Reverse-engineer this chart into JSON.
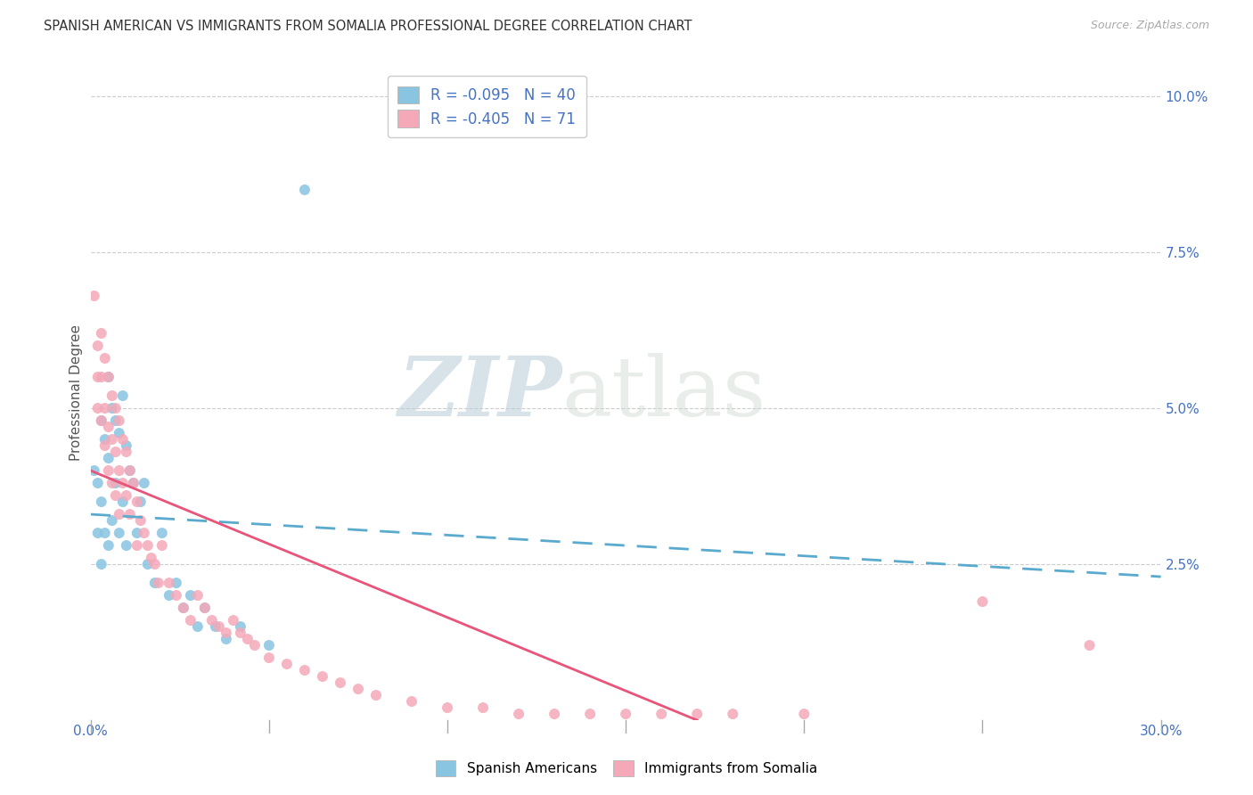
{
  "title": "SPANISH AMERICAN VS IMMIGRANTS FROM SOMALIA PROFESSIONAL DEGREE CORRELATION CHART",
  "source": "Source: ZipAtlas.com",
  "ylabel": "Professional Degree",
  "ytick_vals": [
    0.0,
    0.025,
    0.05,
    0.075,
    0.1
  ],
  "ytick_labs": [
    "",
    "2.5%",
    "5.0%",
    "7.5%",
    "10.0%"
  ],
  "xtick_positions": [
    0.0,
    0.05,
    0.1,
    0.15,
    0.2,
    0.25,
    0.3
  ],
  "xtick_labels": [
    "0.0%",
    "",
    "",
    "",
    "",
    "",
    "30.0%"
  ],
  "xlim": [
    0.0,
    0.3
  ],
  "ylim": [
    0.0,
    0.105
  ],
  "legend_r1": "-0.095",
  "legend_n1": "40",
  "legend_r2": "-0.405",
  "legend_n2": "71",
  "color_blue": "#89c4e1",
  "color_pink": "#f4a8b8",
  "color_blue_line": "#5aaace",
  "color_pink_line": "#e8547a",
  "watermark_zip": "ZIP",
  "watermark_atlas": "atlas",
  "legend_bottom_labels": [
    "Spanish Americans",
    "Immigrants from Somalia"
  ],
  "spanish_x": [
    0.001,
    0.002,
    0.002,
    0.003,
    0.003,
    0.003,
    0.004,
    0.004,
    0.005,
    0.005,
    0.005,
    0.006,
    0.006,
    0.007,
    0.007,
    0.008,
    0.008,
    0.009,
    0.009,
    0.01,
    0.01,
    0.011,
    0.012,
    0.013,
    0.014,
    0.015,
    0.016,
    0.018,
    0.02,
    0.022,
    0.024,
    0.026,
    0.028,
    0.03,
    0.032,
    0.035,
    0.038,
    0.042,
    0.05,
    0.06
  ],
  "spanish_y": [
    0.04,
    0.038,
    0.03,
    0.048,
    0.035,
    0.025,
    0.045,
    0.03,
    0.055,
    0.042,
    0.028,
    0.05,
    0.032,
    0.048,
    0.038,
    0.046,
    0.03,
    0.052,
    0.035,
    0.044,
    0.028,
    0.04,
    0.038,
    0.03,
    0.035,
    0.038,
    0.025,
    0.022,
    0.03,
    0.02,
    0.022,
    0.018,
    0.02,
    0.015,
    0.018,
    0.015,
    0.013,
    0.015,
    0.012,
    0.085
  ],
  "somalia_x": [
    0.001,
    0.002,
    0.002,
    0.002,
    0.003,
    0.003,
    0.003,
    0.004,
    0.004,
    0.004,
    0.005,
    0.005,
    0.005,
    0.006,
    0.006,
    0.006,
    0.007,
    0.007,
    0.007,
    0.008,
    0.008,
    0.008,
    0.009,
    0.009,
    0.01,
    0.01,
    0.011,
    0.011,
    0.012,
    0.013,
    0.013,
    0.014,
    0.015,
    0.016,
    0.017,
    0.018,
    0.019,
    0.02,
    0.022,
    0.024,
    0.026,
    0.028,
    0.03,
    0.032,
    0.034,
    0.036,
    0.038,
    0.04,
    0.042,
    0.044,
    0.046,
    0.05,
    0.055,
    0.06,
    0.065,
    0.07,
    0.075,
    0.08,
    0.09,
    0.1,
    0.11,
    0.12,
    0.13,
    0.14,
    0.15,
    0.16,
    0.17,
    0.18,
    0.2,
    0.25,
    0.28
  ],
  "somalia_y": [
    0.068,
    0.06,
    0.055,
    0.05,
    0.062,
    0.055,
    0.048,
    0.058,
    0.05,
    0.044,
    0.055,
    0.047,
    0.04,
    0.052,
    0.045,
    0.038,
    0.05,
    0.043,
    0.036,
    0.048,
    0.04,
    0.033,
    0.045,
    0.038,
    0.043,
    0.036,
    0.04,
    0.033,
    0.038,
    0.035,
    0.028,
    0.032,
    0.03,
    0.028,
    0.026,
    0.025,
    0.022,
    0.028,
    0.022,
    0.02,
    0.018,
    0.016,
    0.02,
    0.018,
    0.016,
    0.015,
    0.014,
    0.016,
    0.014,
    0.013,
    0.012,
    0.01,
    0.009,
    0.008,
    0.007,
    0.006,
    0.005,
    0.004,
    0.003,
    0.002,
    0.002,
    0.001,
    0.001,
    0.001,
    0.001,
    0.001,
    0.001,
    0.001,
    0.001,
    0.019,
    0.012
  ],
  "sp_line_x": [
    0.0,
    0.3
  ],
  "sp_line_y": [
    0.033,
    0.023
  ],
  "so_line_x": [
    0.0,
    0.17
  ],
  "so_line_y": [
    0.04,
    0.0
  ]
}
